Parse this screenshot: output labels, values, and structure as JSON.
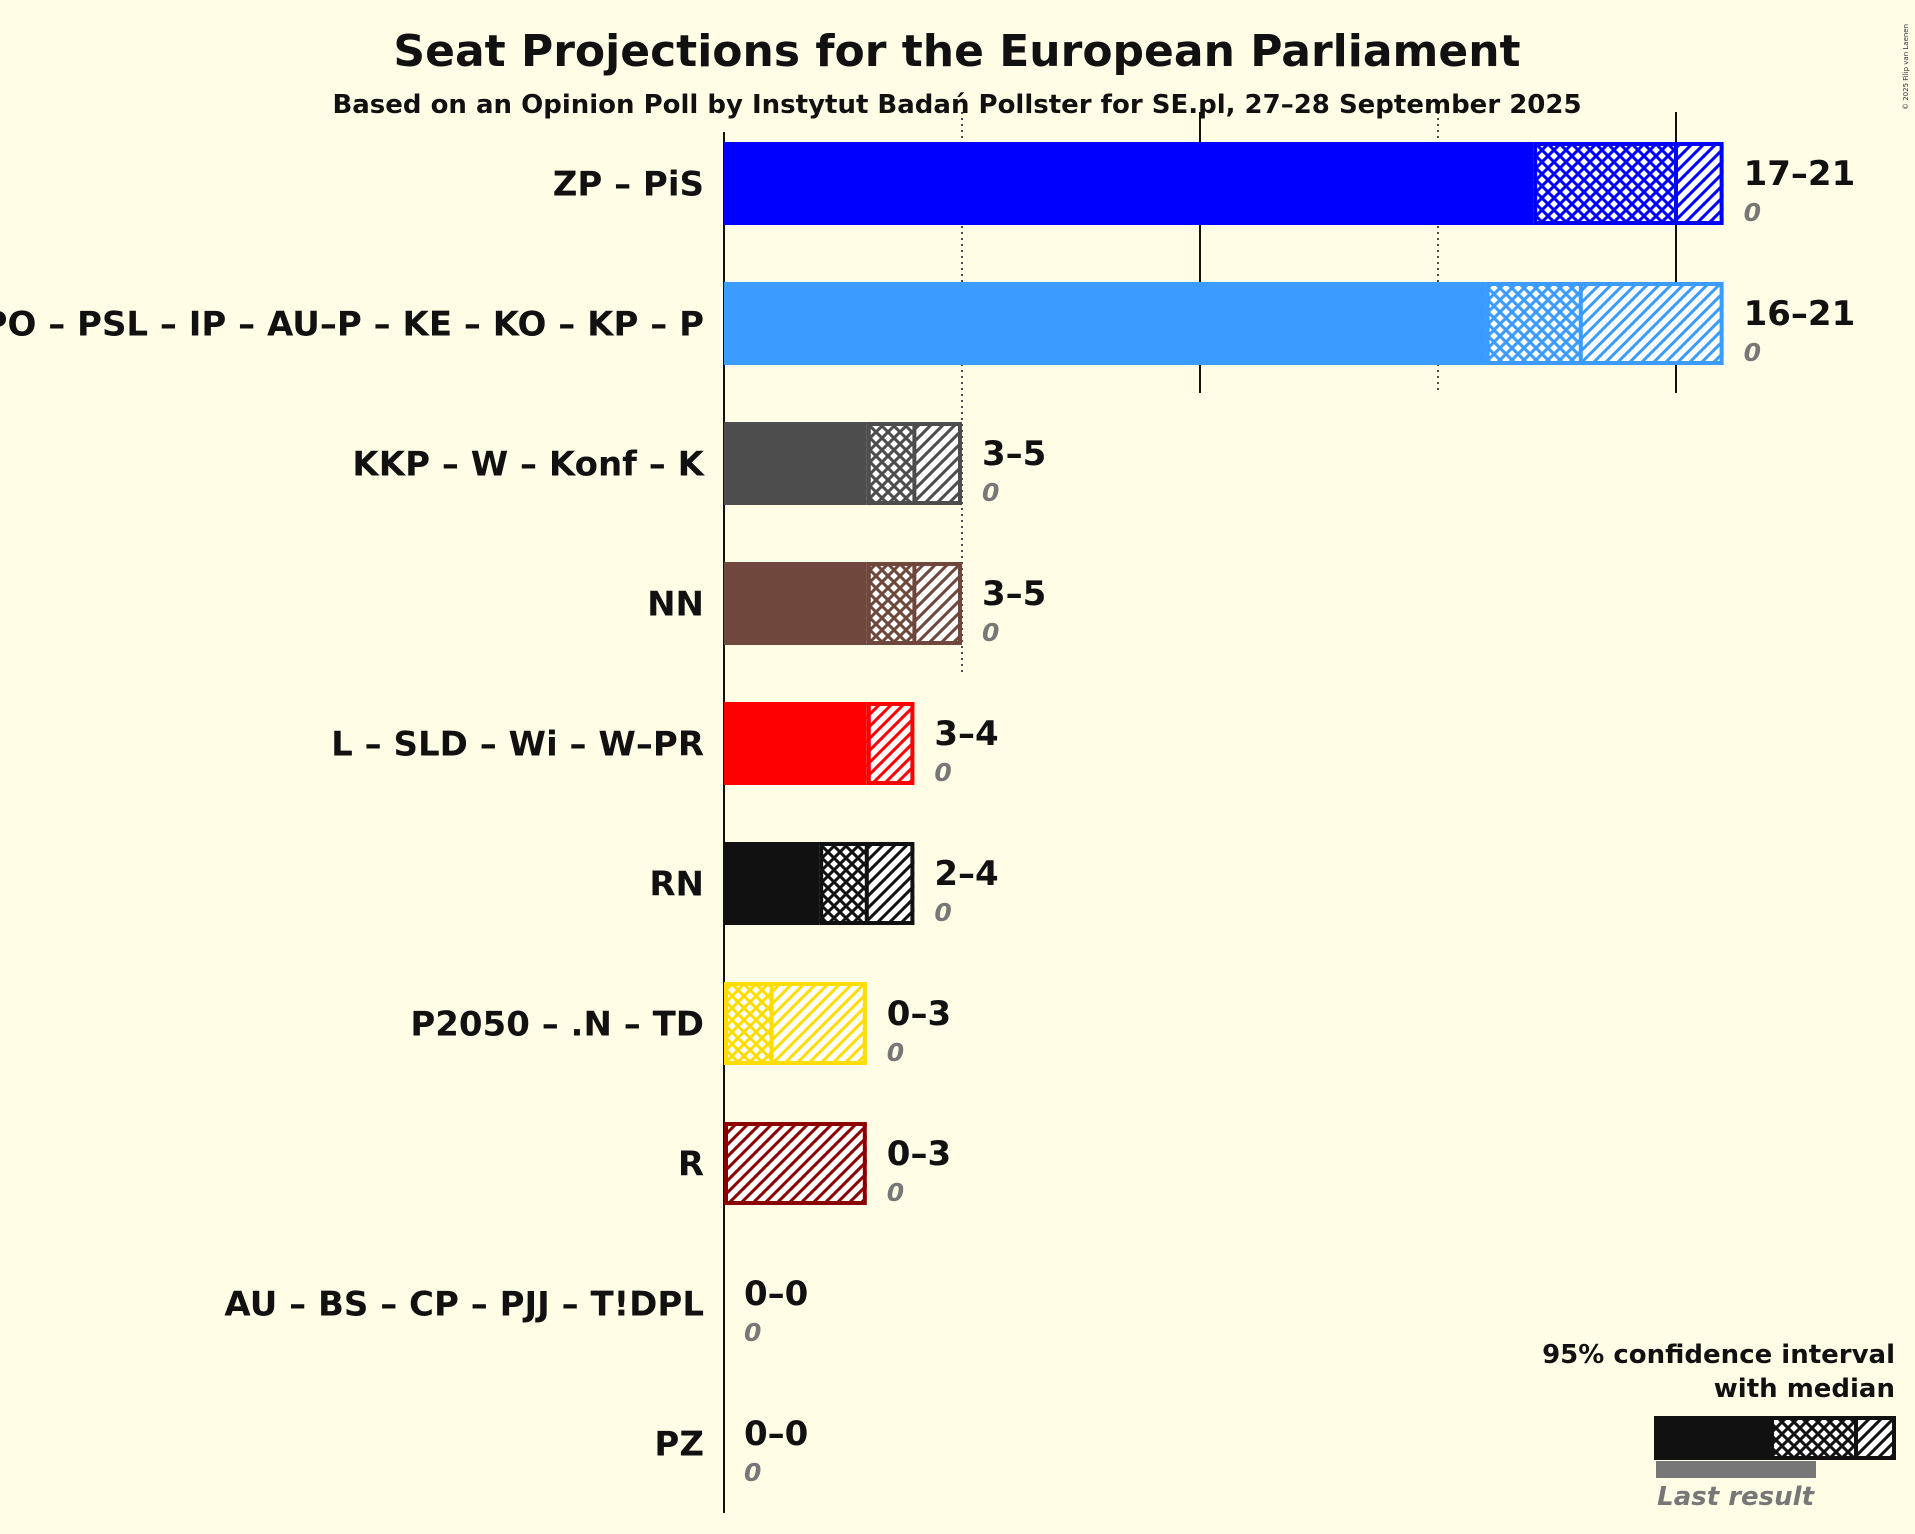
{
  "chart_data": {
    "type": "bar",
    "orientation": "horizontal",
    "title": "Seat Projections for the European Parliament",
    "subtitle": "Based on an Opinion Poll by Instytut Badań Pollster for SE.pl, 27–28 September 2025",
    "copyright": "© 2025 Filip van Laenen",
    "xlim": [
      0,
      21
    ],
    "gridlines": [
      5,
      10,
      15,
      20
    ],
    "gridline_style": "solid at 10 and 20, dotted at 5 and 15",
    "parties": [
      {
        "name": "ZP – PiS",
        "color": "#0000ff",
        "low": 17,
        "median": 20,
        "high": 21,
        "range_label": "17–21",
        "last_result": "0"
      },
      {
        "name": "PO – PSL – IP – AU–P – KE – KO – KP – P",
        "color": "#3b9bff",
        "low": 16,
        "median": 18,
        "high": 21,
        "range_label": "16–21",
        "last_result": "0"
      },
      {
        "name": "KKP – W – Konf – K",
        "color": "#4d4d4d",
        "low": 3,
        "median": 4,
        "high": 5,
        "range_label": "3–5",
        "last_result": "0"
      },
      {
        "name": "NN",
        "color": "#70473c",
        "low": 3,
        "median": 4,
        "high": 5,
        "range_label": "3–5",
        "last_result": "0"
      },
      {
        "name": "L – SLD – Wi – W–PR",
        "color": "#ff0000",
        "low": 3,
        "median": 3,
        "high": 4,
        "range_label": "3–4",
        "last_result": "0"
      },
      {
        "name": "RN",
        "color": "#111111",
        "low": 2,
        "median": 3,
        "high": 4,
        "range_label": "2–4",
        "last_result": "0"
      },
      {
        "name": "P2050 – .N – TD",
        "color": "#ffdd00",
        "low": 0,
        "median": 1,
        "high": 3,
        "range_label": "0–3",
        "last_result": "0"
      },
      {
        "name": "R",
        "color": "#8b0000",
        "low": 0,
        "median": 0,
        "high": 3,
        "range_label": "0–3",
        "last_result": "0"
      },
      {
        "name": "AU – BS – CP – PJJ – T!DPL",
        "color": "#888888",
        "low": 0,
        "median": 0,
        "high": 0,
        "range_label": "0–0",
        "last_result": "0"
      },
      {
        "name": "PZ",
        "color": "#888888",
        "low": 0,
        "median": 0,
        "high": 0,
        "range_label": "0–0",
        "last_result": "0"
      }
    ],
    "legend": {
      "line1": "95% confidence interval",
      "line2": "with median",
      "last_result_label": "Last result",
      "placement": "bottom-right"
    }
  }
}
